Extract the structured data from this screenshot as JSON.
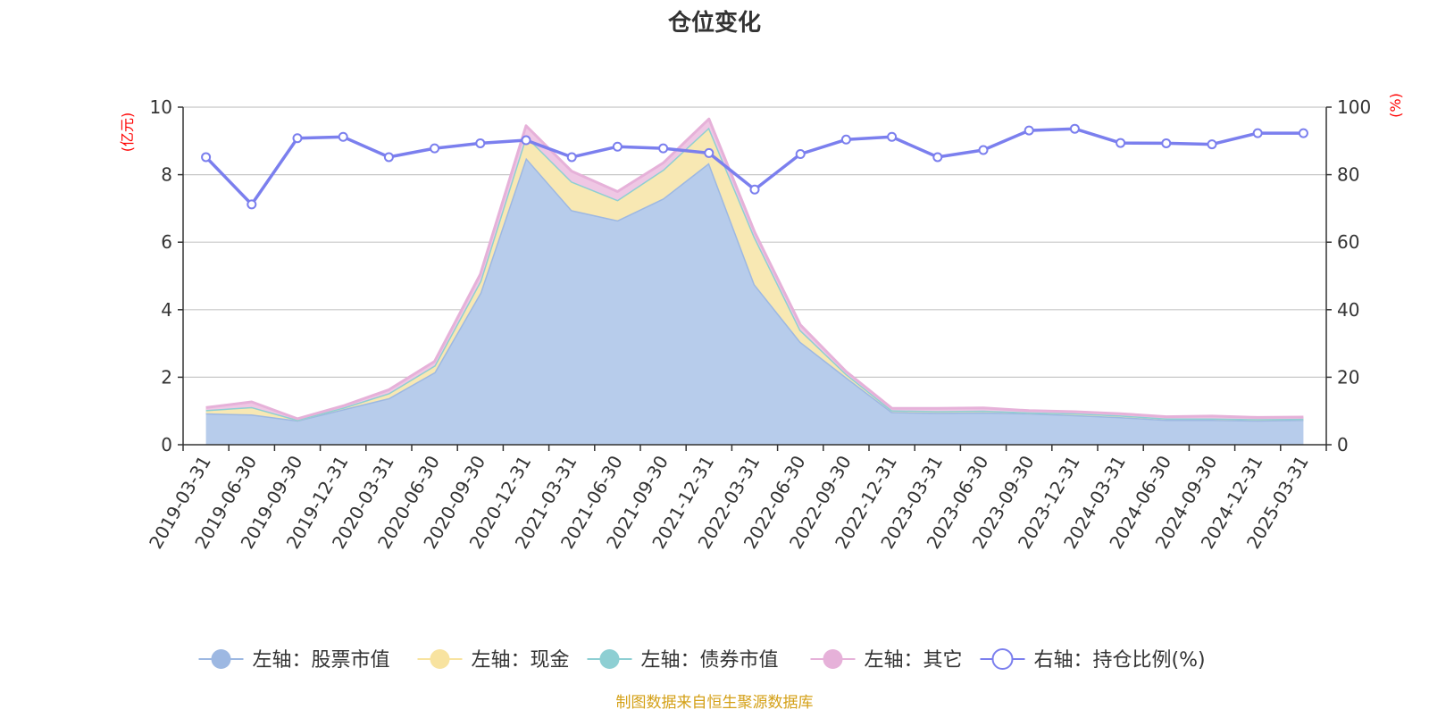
{
  "chart_data": {
    "type": "area",
    "title": "仓位变化",
    "left_axis": {
      "unit": "(亿元)",
      "ylim": [
        0,
        10
      ],
      "ticks": [
        0,
        2,
        4,
        6,
        8,
        10
      ]
    },
    "right_axis": {
      "unit": "(%)",
      "ylim": [
        0,
        100
      ],
      "ticks": [
        0,
        20,
        40,
        60,
        80,
        100
      ]
    },
    "categories": [
      "2019-03-31",
      "2019-06-30",
      "2019-09-30",
      "2019-12-31",
      "2020-03-31",
      "2020-06-30",
      "2020-09-30",
      "2020-12-31",
      "2021-03-31",
      "2021-06-30",
      "2021-09-30",
      "2021-12-31",
      "2022-03-31",
      "2022-06-30",
      "2022-09-30",
      "2022-12-31",
      "2023-03-31",
      "2023-06-30",
      "2023-09-30",
      "2023-12-31",
      "2024-03-31",
      "2024-06-30",
      "2024-09-30",
      "2024-12-31",
      "2025-03-31"
    ],
    "series": [
      {
        "name": "左轴：股票市值",
        "axis": "left",
        "stacked": true,
        "color": "#9db8e2",
        "fill": "#b7cceb",
        "values": [
          0.93,
          0.9,
          0.72,
          1.05,
          1.38,
          2.15,
          4.5,
          8.5,
          6.95,
          6.65,
          7.3,
          8.35,
          4.75,
          3.05,
          2.0,
          0.97,
          0.95,
          0.96,
          0.93,
          0.88,
          0.82,
          0.74,
          0.74,
          0.72,
          0.74
        ]
      },
      {
        "name": "左轴：现金",
        "axis": "left",
        "stacked": true,
        "color": "#f8e3a0",
        "fill": "#f8e8b3",
        "values": [
          0.1,
          0.22,
          0.02,
          0.05,
          0.15,
          0.2,
          0.35,
          0.65,
          0.85,
          0.6,
          0.85,
          1.05,
          1.4,
          0.35,
          0.1,
          0.05,
          0.05,
          0.05,
          0.03,
          0.05,
          0.05,
          0.04,
          0.04,
          0.04,
          0.03
        ]
      },
      {
        "name": "左轴：债券市值",
        "axis": "left",
        "stacked": true,
        "color": "#8ecfd3",
        "fill": "#a8dadd",
        "values": [
          0,
          0,
          0,
          0,
          0,
          0,
          0,
          0,
          0,
          0,
          0,
          0,
          0,
          0,
          0,
          0,
          0,
          0,
          0,
          0,
          0,
          0,
          0,
          0,
          0
        ]
      },
      {
        "name": "左轴：其它",
        "axis": "left",
        "stacked": true,
        "color": "#e6b1d9",
        "fill": "#efc7e4",
        "values": [
          0.07,
          0.15,
          0.03,
          0.05,
          0.1,
          0.12,
          0.2,
          0.3,
          0.3,
          0.25,
          0.2,
          0.25,
          0.15,
          0.15,
          0.07,
          0.06,
          0.08,
          0.08,
          0.05,
          0.05,
          0.05,
          0.05,
          0.07,
          0.05,
          0.05
        ]
      },
      {
        "name": "右轴：持仓比例(%)",
        "axis": "right",
        "type": "line",
        "color": "#7b7fee",
        "values": [
          85.2,
          71.2,
          90.8,
          91.2,
          85.2,
          87.8,
          89.3,
          90.2,
          85.2,
          88.3,
          87.8,
          86.4,
          75.6,
          86.1,
          90.4,
          91.2,
          85.2,
          87.3,
          93.1,
          93.6,
          89.4,
          89.3,
          89.0,
          92.3,
          92.3
        ]
      }
    ]
  },
  "source": "制图数据来自恒生聚源数据库"
}
